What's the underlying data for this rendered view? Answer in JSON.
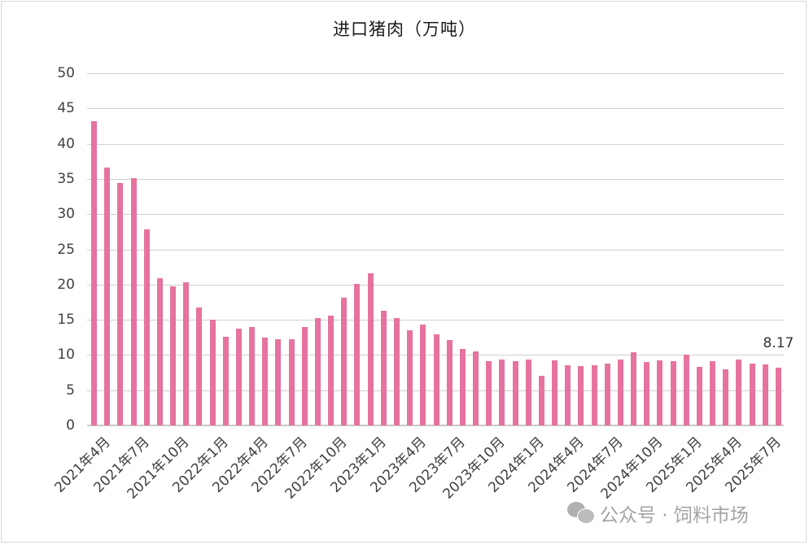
{
  "chart_data": {
    "type": "bar",
    "title": "进口猪肉（万吨）",
    "xlabel": "",
    "ylabel": "",
    "ylim": [
      0,
      50
    ],
    "yticks": [
      0,
      5,
      10,
      15,
      20,
      25,
      30,
      35,
      40,
      45,
      50
    ],
    "grid": true,
    "legend": null,
    "bar_color": "#e6739f",
    "categories": [
      "2021年4月",
      "2021年5月",
      "2021年6月",
      "2021年7月",
      "2021年8月",
      "2021年9月",
      "2021年10月",
      "2021年11月",
      "2021年12月",
      "2022年1月",
      "2022年2月",
      "2022年3月",
      "2022年4月",
      "2022年5月",
      "2022年6月",
      "2022年7月",
      "2022年8月",
      "2022年9月",
      "2022年10月",
      "2022年11月",
      "2022年12月",
      "2023年1月",
      "2023年2月",
      "2023年3月",
      "2023年4月",
      "2023年5月",
      "2023年6月",
      "2023年7月",
      "2023年8月",
      "2023年9月",
      "2023年10月",
      "2023年11月",
      "2023年12月",
      "2024年1月",
      "2024年2月",
      "2024年3月",
      "2024年4月",
      "2024年5月",
      "2024年6月",
      "2024年7月",
      "2024年8月",
      "2024年9月",
      "2024年10月",
      "2024年11月",
      "2024年12月",
      "2025年1月",
      "2025年2月",
      "2025年3月",
      "2025年4月",
      "2025年5月",
      "2025年6月",
      "2025年7月",
      "2025年8月"
    ],
    "visible_xtick_labels": [
      "2021年4月",
      "2021年7月",
      "2021年10月",
      "2022年1月",
      "2022年4月",
      "2022年7月",
      "2022年10月",
      "2023年1月",
      "2023年4月",
      "2023年7月",
      "2023年10月",
      "2024年1月",
      "2024年4月",
      "2024年7月",
      "2024年10月",
      "2025年1月",
      "2025年4月",
      "2025年7月"
    ],
    "values": [
      43.2,
      36.6,
      34.4,
      35.1,
      27.8,
      20.9,
      19.8,
      20.3,
      16.7,
      15.0,
      12.6,
      13.7,
      14.0,
      12.5,
      12.2,
      12.2,
      14.0,
      15.3,
      15.6,
      18.1,
      20.1,
      21.6,
      16.3,
      15.2,
      13.5,
      14.3,
      12.9,
      12.1,
      10.9,
      10.5,
      9.1,
      9.3,
      9.1,
      9.4,
      7.0,
      9.2,
      8.6,
      8.4,
      8.5,
      8.8,
      9.4,
      10.4,
      9.0,
      9.2,
      9.1,
      10.0,
      8.3,
      9.1,
      8.0,
      9.3,
      8.8,
      8.7,
      8.17
    ],
    "annotations": [
      {
        "category": "2025年8月",
        "text": "8.17"
      }
    ]
  },
  "watermark": {
    "icon": "wechat-icon",
    "text": "公众号 · 饲料市场"
  }
}
